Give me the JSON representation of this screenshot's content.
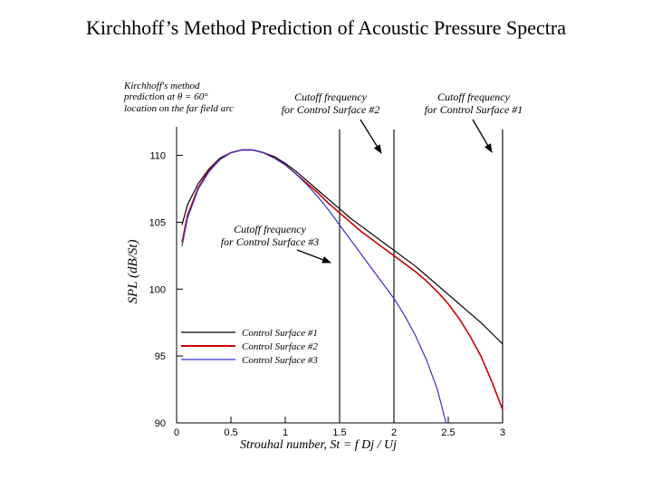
{
  "page": {
    "title": "Kirchhoff’s Method Prediction of Acoustic Pressure Spectra"
  },
  "chart_data": {
    "type": "line",
    "title": "Kirchhoff’s Method Prediction of Acoustic Pressure Spectra",
    "xlabel": "Strouhal number, St = f Dj / Uj",
    "ylabel": "SPL (dB/St)",
    "xlim": [
      0,
      3
    ],
    "ylim": [
      90,
      112
    ],
    "x_ticks": [
      0,
      0.5,
      1,
      1.5,
      2,
      2.5,
      3
    ],
    "x_tick_labels": [
      "0",
      "0.5",
      "1",
      "1.5",
      "2",
      "2.5",
      "3"
    ],
    "y_ticks": [
      90,
      95,
      100,
      105,
      110
    ],
    "y_tick_labels": [
      "90",
      "95",
      "100",
      "105",
      "110"
    ],
    "grid": false,
    "legend_position": "lower-left",
    "colors": {
      "cs1": "#000000",
      "cs2": "#cc0000",
      "cs3": "#3333cc",
      "axis": "#000000"
    },
    "series": [
      {
        "name": "Control Surface #1",
        "color": "#000000",
        "width": 1.2,
        "x": [
          0.05,
          0.1,
          0.2,
          0.3,
          0.4,
          0.5,
          0.6,
          0.7,
          0.8,
          0.9,
          1.0,
          1.1,
          1.2,
          1.3,
          1.4,
          1.5,
          1.6,
          1.7,
          1.8,
          1.9,
          2.0,
          2.1,
          2.2,
          2.3,
          2.4,
          2.5,
          2.6,
          2.7,
          2.8,
          2.9,
          3.0
        ],
        "y": [
          104.8,
          106.3,
          107.9,
          109.0,
          109.8,
          110.2,
          110.4,
          110.4,
          110.2,
          109.9,
          109.4,
          108.8,
          108.1,
          107.4,
          106.7,
          106.0,
          105.3,
          104.7,
          104.1,
          103.5,
          102.9,
          102.3,
          101.7,
          101.0,
          100.3,
          99.6,
          98.9,
          98.2,
          97.5,
          96.7,
          95.9
        ]
      },
      {
        "name": "Control Surface #2",
        "color": "#cc0000",
        "width": 1.6,
        "x": [
          0.05,
          0.1,
          0.2,
          0.3,
          0.4,
          0.5,
          0.6,
          0.7,
          0.8,
          0.9,
          1.0,
          1.1,
          1.2,
          1.3,
          1.4,
          1.5,
          1.6,
          1.7,
          1.8,
          1.9,
          2.0,
          2.1,
          2.2,
          2.3,
          2.4,
          2.5,
          2.6,
          2.7,
          2.8,
          2.9,
          3.0
        ],
        "y": [
          103.5,
          105.5,
          107.6,
          108.9,
          109.7,
          110.2,
          110.4,
          110.4,
          110.2,
          109.8,
          109.3,
          108.6,
          107.9,
          107.2,
          106.4,
          105.7,
          105.0,
          104.3,
          103.7,
          103.1,
          102.5,
          101.9,
          101.3,
          100.6,
          99.8,
          98.9,
          97.8,
          96.5,
          95.0,
          93.1,
          91.0
        ]
      },
      {
        "name": "Control Surface #3",
        "color": "#3333cc",
        "width": 1.2,
        "x": [
          0.05,
          0.1,
          0.2,
          0.3,
          0.4,
          0.5,
          0.6,
          0.7,
          0.8,
          0.9,
          1.0,
          1.1,
          1.2,
          1.3,
          1.4,
          1.5,
          1.6,
          1.7,
          1.8,
          1.9,
          2.0,
          2.1,
          2.2,
          2.3,
          2.4,
          2.48
        ],
        "y": [
          103.2,
          105.3,
          107.5,
          108.8,
          109.7,
          110.2,
          110.4,
          110.4,
          110.2,
          109.8,
          109.3,
          108.6,
          107.8,
          106.9,
          105.9,
          104.8,
          103.7,
          102.6,
          101.5,
          100.4,
          99.3,
          98.0,
          96.5,
          94.7,
          92.5,
          90.0
        ]
      }
    ],
    "cutoff_lines": [
      {
        "x": 1.5,
        "label": "Control Surface #3"
      },
      {
        "x": 2.0,
        "label": "Control Surface #2"
      },
      {
        "x": 3.0,
        "label": "Control Surface #1"
      }
    ],
    "annotations": {
      "observer_line1": "Kirchhoff's method",
      "observer_line2": "prediction at θ = 60°",
      "observer_line3": "location on the far field arc",
      "cs2_line1": "Cutoff frequency",
      "cs2_line2": "for Control Surface #2",
      "cs1_line1": "Cutoff frequency",
      "cs1_line2": "for Control Surface #1",
      "cs3_line1": "Cutoff frequency",
      "cs3_line2": "for Control Surface #3"
    },
    "legend_entries": [
      "Control Surface #1",
      "Control Surface #2",
      "Control Surface #3"
    ]
  }
}
